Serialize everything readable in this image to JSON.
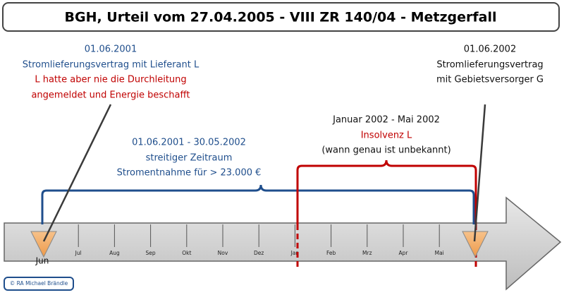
{
  "title": "BGH, Urteil vom 27.04.2005 - VIII ZR 140/04 - Metzgerfall",
  "left_note": {
    "lines": [
      "01.06.2001",
      "Stromlieferungsvertrag mit Lieferant L",
      "L hatte aber nie die Durchleitung",
      "angemeldet und Energie beschafft"
    ]
  },
  "right_note": {
    "lines": [
      "01.06.2002",
      "Stromlieferungsvertrag",
      "mit Gebietsversorger G"
    ]
  },
  "insolvency_note": {
    "lines": [
      "Januar 2002 - Mai 2002",
      "Insolvenz L",
      "(wann genau ist unbekannt)"
    ]
  },
  "period_note": {
    "lines": [
      "01.06.2001 - 30.05.2002",
      "streitiger Zeitraum",
      "Stromentnahme für > 23.000 €"
    ]
  },
  "months": [
    "Jun",
    "Jul",
    "Aug",
    "Sep",
    "Okt",
    "Nov",
    "Dez",
    "Jan",
    "Feb",
    "Mrz",
    "Apr",
    "Mai"
  ],
  "footer": "© RA Michael Brändle"
}
